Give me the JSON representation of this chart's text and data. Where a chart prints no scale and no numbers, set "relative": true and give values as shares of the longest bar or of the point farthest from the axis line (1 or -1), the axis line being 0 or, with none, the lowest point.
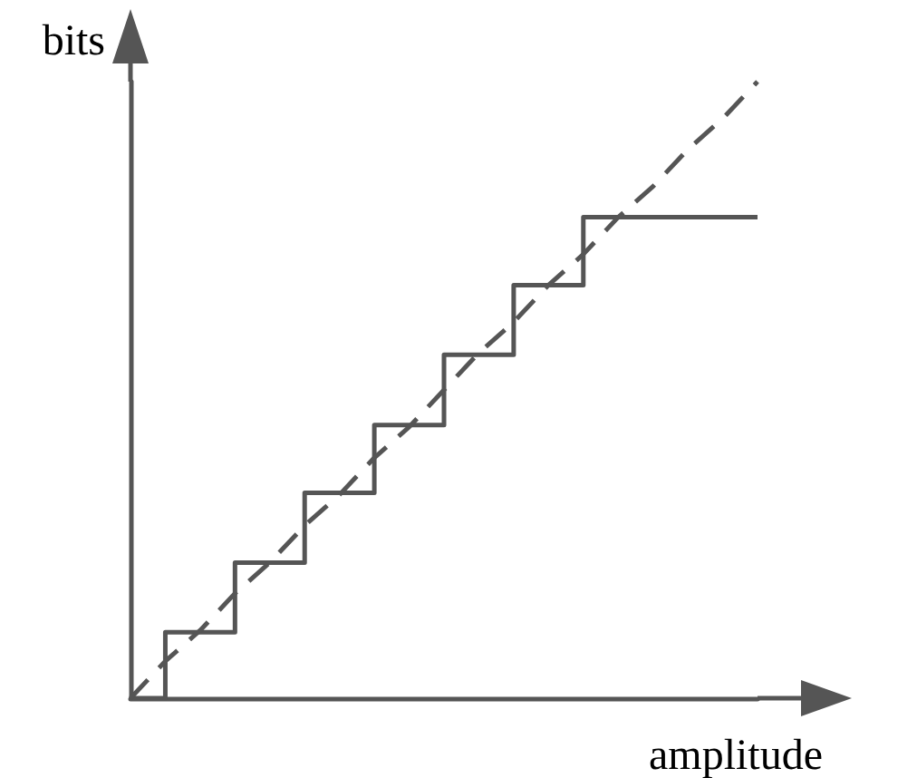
{
  "chart_data": {
    "type": "step",
    "relative": true,
    "xlabel": "amplitude",
    "ylabel": "bits",
    "grid": false,
    "categories": [
      null,
      null,
      null,
      null,
      null,
      null,
      null,
      null,
      null,
      null,
      null,
      null,
      null,
      null,
      null,
      null,
      null,
      null,
      null
    ],
    "series": [
      {
        "color": "#555555",
        "line_style": "solid",
        "values": [
          0,
          0,
          0.107,
          0.107,
          0.22,
          0.22,
          0.333,
          0.333,
          0.443,
          0.443,
          0.557,
          0.557,
          0.67,
          0.67,
          0.78,
          0.78,
          0.78,
          0.78,
          0.78
        ]
      },
      {
        "type": "line",
        "color": "#555555",
        "line_style": "dashed",
        "values": [
          0,
          0.06,
          0.11,
          0.17,
          0.22,
          0.28,
          0.33,
          0.39,
          0.44,
          0.5,
          0.56,
          0.61,
          0.67,
          0.72,
          0.78,
          0.83,
          0.89,
          0.94,
          1
        ]
      }
    ]
  }
}
